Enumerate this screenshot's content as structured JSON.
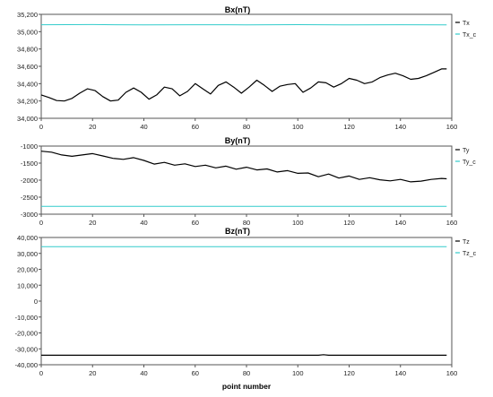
{
  "chart_data": [
    {
      "type": "line",
      "title": "Bx(nT)",
      "xlabel": "",
      "ylabel": "",
      "xlim": [
        0,
        160
      ],
      "ylim": [
        34000,
        35200
      ],
      "xticks": [
        0,
        20,
        40,
        60,
        80,
        100,
        120,
        140,
        160
      ],
      "yticks": [
        34000,
        34200,
        34400,
        34600,
        34800,
        35000,
        35200
      ],
      "ytick_labels": [
        "34,000",
        "34,200",
        "34,400",
        "34,600",
        "34,800",
        "35,000",
        "35,200"
      ],
      "xtick_labels": [
        "0",
        "20",
        "40",
        "60",
        "80",
        "100",
        "120",
        "140",
        "160"
      ],
      "legend_position": "top-right",
      "series": [
        {
          "name": "Tx",
          "color": "#000000",
          "x": [
            0,
            3,
            6,
            9,
            12,
            15,
            18,
            21,
            24,
            27,
            30,
            33,
            36,
            39,
            42,
            45,
            48,
            51,
            54,
            57,
            60,
            63,
            66,
            69,
            72,
            75,
            78,
            81,
            84,
            87,
            90,
            93,
            96,
            99,
            102,
            105,
            108,
            111,
            114,
            117,
            120,
            123,
            126,
            129,
            132,
            135,
            138,
            141,
            144,
            147,
            150,
            153,
            156,
            158
          ],
          "values": [
            34270,
            34240,
            34205,
            34200,
            34230,
            34290,
            34340,
            34320,
            34250,
            34200,
            34210,
            34300,
            34350,
            34300,
            34220,
            34270,
            34360,
            34340,
            34260,
            34310,
            34400,
            34340,
            34280,
            34380,
            34420,
            34360,
            34290,
            34360,
            34440,
            34380,
            34310,
            34370,
            34390,
            34400,
            34300,
            34350,
            34420,
            34410,
            34360,
            34400,
            34460,
            34440,
            34400,
            34420,
            34470,
            34500,
            34520,
            34490,
            34450,
            34460,
            34490,
            34530,
            34570,
            34570
          ]
        },
        {
          "name": "Tx_c",
          "color": "#33cccc",
          "x": [
            0,
            20,
            40,
            60,
            80,
            100,
            120,
            140,
            158
          ],
          "values": [
            35080,
            35082,
            35078,
            35080,
            35079,
            35081,
            35078,
            35080,
            35078
          ]
        }
      ]
    },
    {
      "type": "line",
      "title": "By(nT)",
      "xlabel": "",
      "ylabel": "",
      "xlim": [
        0,
        160
      ],
      "ylim": [
        -3000,
        -1000
      ],
      "xticks": [
        0,
        20,
        40,
        60,
        80,
        100,
        120,
        140,
        160
      ],
      "yticks": [
        -3000,
        -2500,
        -2000,
        -1500,
        -1000
      ],
      "ytick_labels": [
        "-3000",
        "-2500",
        "-2000",
        "-1500",
        "-1000"
      ],
      "xtick_labels": [
        "0",
        "20",
        "40",
        "60",
        "80",
        "100",
        "120",
        "140",
        "160"
      ],
      "legend_position": "top-right",
      "series": [
        {
          "name": "Ty",
          "color": "#000000",
          "x": [
            0,
            4,
            8,
            12,
            16,
            20,
            24,
            28,
            32,
            36,
            40,
            44,
            48,
            52,
            56,
            60,
            64,
            68,
            72,
            76,
            80,
            84,
            88,
            92,
            96,
            100,
            104,
            108,
            112,
            116,
            120,
            124,
            128,
            132,
            136,
            140,
            144,
            148,
            152,
            156,
            158
          ],
          "values": [
            -1150,
            -1180,
            -1260,
            -1300,
            -1260,
            -1220,
            -1290,
            -1360,
            -1390,
            -1340,
            -1420,
            -1530,
            -1480,
            -1560,
            -1520,
            -1600,
            -1560,
            -1640,
            -1590,
            -1680,
            -1620,
            -1700,
            -1670,
            -1760,
            -1720,
            -1800,
            -1790,
            -1900,
            -1820,
            -1940,
            -1880,
            -1980,
            -1930,
            -1990,
            -2020,
            -1980,
            -2050,
            -2030,
            -1980,
            -1950,
            -1960
          ]
        },
        {
          "name": "Ty_c",
          "color": "#33cccc",
          "x": [
            0,
            20,
            40,
            60,
            80,
            100,
            120,
            140,
            158
          ],
          "values": [
            -2770,
            -2768,
            -2771,
            -2769,
            -2770,
            -2768,
            -2770,
            -2769,
            -2770
          ]
        }
      ]
    },
    {
      "type": "line",
      "title": "Bz(nT)",
      "xlabel": "point number",
      "ylabel": "",
      "xlim": [
        0,
        160
      ],
      "ylim": [
        -40000,
        40000
      ],
      "xticks": [
        0,
        20,
        40,
        60,
        80,
        100,
        120,
        140,
        160
      ],
      "yticks": [
        -40000,
        -30000,
        -20000,
        -10000,
        0,
        10000,
        20000,
        30000,
        40000
      ],
      "ytick_labels": [
        "-40,000",
        "-30,000",
        "-20,000",
        "-10,000",
        "0",
        "10,000",
        "20,000",
        "30,000",
        "40,000"
      ],
      "xtick_labels": [
        "0",
        "20",
        "40",
        "60",
        "80",
        "100",
        "120",
        "140",
        "160"
      ],
      "legend_position": "top-right",
      "series": [
        {
          "name": "Tz",
          "color": "#000000",
          "x": [
            0,
            40,
            80,
            108,
            110,
            112,
            140,
            158
          ],
          "values": [
            -34000,
            -34000,
            -34000,
            -34000,
            -33700,
            -34000,
            -34000,
            -34000
          ]
        },
        {
          "name": "Tz_c",
          "color": "#33cccc",
          "x": [
            0,
            40,
            80,
            120,
            158
          ],
          "values": [
            34200,
            34200,
            34200,
            34200,
            34200
          ]
        }
      ]
    }
  ]
}
